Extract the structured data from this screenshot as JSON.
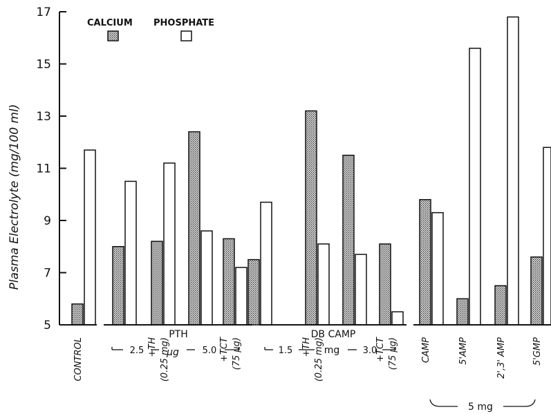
{
  "chart_data": {
    "type": "bar",
    "ylabel": "Plasma Electrolyte (mg/100 ml)",
    "ylim": [
      5,
      17
    ],
    "yticks": [
      5,
      7,
      9,
      11,
      13,
      15,
      17
    ],
    "legend": {
      "placement": "top-left",
      "items": [
        {
          "name": "CALCIUM",
          "pattern": "stippled"
        },
        {
          "name": "PHOSPHATE",
          "pattern": "open"
        }
      ]
    },
    "series": [
      {
        "name": "CALCIUM",
        "values": [
          5.8,
          8.0,
          8.2,
          12.4,
          8.3,
          7.5,
          13.2,
          11.5,
          8.1,
          9.8,
          6.0,
          6.5,
          7.6
        ]
      },
      {
        "name": "PHOSPHATE",
        "values": [
          11.7,
          10.5,
          11.2,
          8.6,
          7.2,
          9.7,
          8.1,
          7.7,
          5.5,
          9.3,
          15.6,
          16.8,
          11.8
        ]
      }
    ],
    "categories": [
      [
        "CONTROL"
      ],
      [
        ""
      ],
      [
        "+TH",
        "(0.25 mg)"
      ],
      [
        ""
      ],
      [
        "+TCT",
        "(75 µg)"
      ],
      [
        ""
      ],
      [
        "+TH",
        "(0.25 mg)"
      ],
      [
        ""
      ],
      [
        "+TCT",
        "(75 µg)"
      ],
      [
        "CAMP"
      ],
      [
        "5'AMP"
      ],
      [
        "2',3' AMP"
      ],
      [
        "5'GMP"
      ]
    ],
    "group_labels": [
      {
        "title": "PTH",
        "dose_left": "2.5",
        "dose_unit": "µg",
        "dose_right": "5.0"
      },
      {
        "title": "DB CAMP",
        "dose_left": "1.5",
        "dose_unit": "mg",
        "dose_right": "3.0"
      },
      {
        "title": "",
        "dose_bottom": "5 mg"
      }
    ],
    "grid": false
  }
}
